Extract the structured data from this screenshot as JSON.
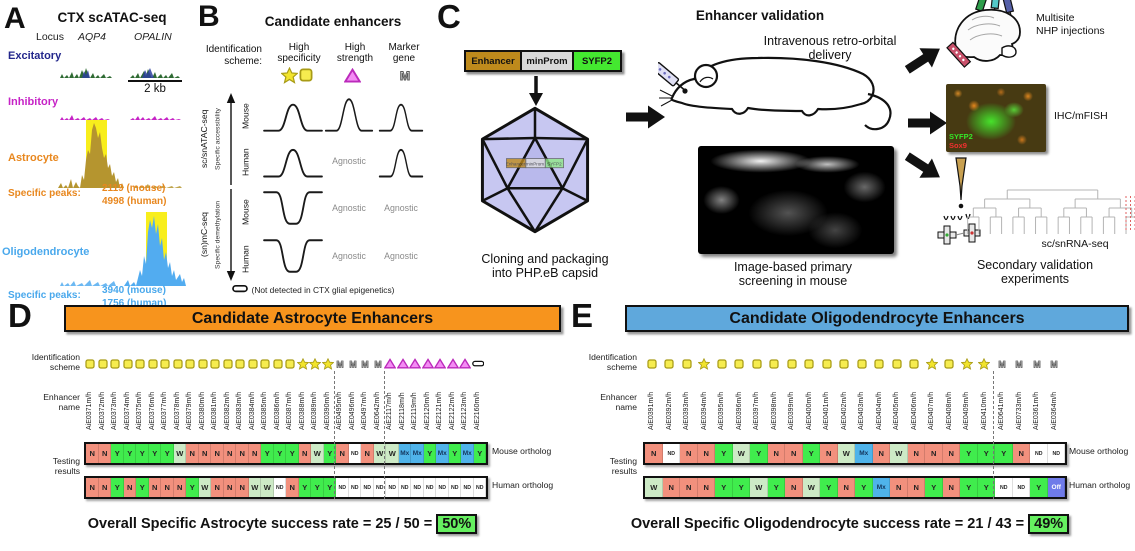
{
  "colors": {
    "astro_header": "#F7941D",
    "oligo_header": "#5FA8DC",
    "result_N": "#F2907D",
    "result_Y": "#40EC4D",
    "result_W": "#CDEAC6",
    "result_ND": "#FFFFFF",
    "result_Mx": "#4FB3EA",
    "result_Off": "#6F7BE9",
    "success_highlight": "#66F060",
    "excitatory": "#23278C",
    "inhibitory": "#C623C6",
    "astrocyte": "#E8871E",
    "oligodendrocyte": "#49A8EC"
  },
  "panel_a": {
    "label": "A",
    "title": "CTX scATAC-seq",
    "locus": "Locus",
    "gene1": "AQP4",
    "gene2": "OPALIN",
    "scale": "2 kb",
    "excitatory": "Excitatory",
    "inhibitory": "Inhibitory",
    "astrocyte": "Astrocyte",
    "oligodendrocyte": "Oligodendrocyte",
    "astro_peaks_label": "Specific peaks:",
    "astro_peaks": [
      "2119 (mouse)",
      "4998 (human)"
    ],
    "oligo_peaks_label": "Specific peaks:",
    "oligo_peaks": [
      "3940 (mouse)",
      "1756 (human)"
    ]
  },
  "panel_b": {
    "label": "B",
    "title": "Candidate enhancers",
    "scheme_label": [
      "Identification",
      "scheme:"
    ],
    "columns": [
      [
        "High",
        "specificity"
      ],
      [
        "High",
        "strength"
      ],
      [
        "Marker",
        "gene"
      ]
    ],
    "groups": [
      {
        "assay": "sc/snATAC-seq",
        "signal": "Specific accessibility"
      },
      {
        "assay": "(sn)mC-seq",
        "signal": "Specific demethylation"
      }
    ],
    "species": [
      "Mouse",
      "Human"
    ],
    "agnostic": "Agnostic",
    "cells": [
      [
        "peak",
        "tallpeak",
        "peak"
      ],
      [
        "peak",
        "agnostic",
        "peak"
      ],
      [
        "dip",
        "agnostic",
        "agnostic"
      ],
      [
        "dip",
        "agnostic",
        "agnostic"
      ]
    ],
    "footnote": "(Not detected in CTX glial epigenetics)"
  },
  "panel_c": {
    "label": "C",
    "title": "Enhancer validation",
    "construct": [
      "Enhancer",
      "minProm",
      "SYFP2"
    ],
    "cloning_caption": [
      "Cloning and packaging",
      "into PHP.eB capsid"
    ],
    "delivery_caption": [
      "Intravenous retro-orbital",
      "delivery"
    ],
    "screening_caption": [
      "Image-based primary",
      "screening in mouse"
    ],
    "nhp_label": [
      "Multisite",
      "NHP injections"
    ],
    "ihc_label": "IHC/mFISH",
    "ihc_markers": [
      "SYFP2",
      "Sox9"
    ],
    "rna_label": "sc/snRNA-seq",
    "secondary_caption": [
      "Secondary validation",
      "experiments"
    ]
  },
  "panel_d": {
    "label": "D",
    "header": "Candidate Astrocyte Enhancers",
    "scheme_label": [
      "Identification",
      "scheme"
    ],
    "name_label": [
      "Enhancer",
      "name"
    ],
    "testing_label": [
      "Testing",
      "results"
    ],
    "mouse_row_label": "Mouse ortholog",
    "human_row_label": "Human ortholog",
    "enhancers": [
      {
        "name": "AiE0371m/h",
        "icon": "square"
      },
      {
        "name": "AiE0372m/h",
        "icon": "square"
      },
      {
        "name": "AiE0373m/h",
        "icon": "square"
      },
      {
        "name": "AiE0374m/h",
        "icon": "square"
      },
      {
        "name": "AiE0375m/h",
        "icon": "square"
      },
      {
        "name": "AiE0376m/h",
        "icon": "square"
      },
      {
        "name": "AiE0377m/h",
        "icon": "square"
      },
      {
        "name": "AiE0378m/h",
        "icon": "square"
      },
      {
        "name": "AiE0379m/h",
        "icon": "square"
      },
      {
        "name": "AiE0380m/h",
        "icon": "square"
      },
      {
        "name": "AiE0381m/h",
        "icon": "square"
      },
      {
        "name": "AiE0382m/h",
        "icon": "square"
      },
      {
        "name": "AiE0383m/h",
        "icon": "square"
      },
      {
        "name": "AiE0384m/h",
        "icon": "square"
      },
      {
        "name": "AiE0385m/h",
        "icon": "square"
      },
      {
        "name": "AiE0386m/h",
        "icon": "square"
      },
      {
        "name": "AiE0387m/h",
        "icon": "square"
      },
      {
        "name": "AiE0388m/h",
        "icon": "star"
      },
      {
        "name": "AiE0389m/h",
        "icon": "star"
      },
      {
        "name": "AiE0390m/h",
        "icon": "star"
      },
      {
        "name": "AiE0495m/h",
        "icon": "marker"
      },
      {
        "name": "AiE0496m/h",
        "icon": "marker"
      },
      {
        "name": "AiE0497m/h",
        "icon": "marker"
      },
      {
        "name": "AiE0642m/h",
        "icon": "marker"
      },
      {
        "name": "AiE2117m/h",
        "icon": "triangle"
      },
      {
        "name": "AiE2118m/h",
        "icon": "triangle"
      },
      {
        "name": "AiE2119m/h",
        "icon": "triangle"
      },
      {
        "name": "AiE2120m/h",
        "icon": "triangle"
      },
      {
        "name": "AiE2121m/h",
        "icon": "triangle"
      },
      {
        "name": "AiE2122m/h",
        "icon": "triangle"
      },
      {
        "name": "AiE2123m/h",
        "icon": "triangle"
      },
      {
        "name": "AiE2160m/h",
        "icon": "notdet"
      }
    ],
    "mouse_results": [
      "N",
      "N",
      "Y",
      "Y",
      "Y",
      "Y",
      "Y",
      "W",
      "N",
      "N",
      "N",
      "N",
      "N",
      "N",
      "Y",
      "Y",
      "Y",
      "N",
      "W",
      "Y",
      "N",
      "ND",
      "N",
      "W",
      "W",
      "Mx",
      "Mx",
      "Y",
      "Mx",
      "Y",
      "Mx",
      "Y"
    ],
    "human_results": [
      "N",
      "N",
      "Y",
      "N",
      "Y",
      "N",
      "N",
      "N",
      "Y",
      "W",
      "N",
      "N",
      "N",
      "W",
      "W",
      "ND",
      "N",
      "Y",
      "Y",
      "Y",
      "ND",
      "ND",
      "ND",
      "ND",
      "ND",
      "ND",
      "ND",
      "ND",
      "ND",
      "ND",
      "ND",
      "ND"
    ],
    "group_breaks": [
      20,
      24
    ],
    "footer": "Overall Specific Astrocyte success rate = 25 / 50 =",
    "footer_highlight": "50%"
  },
  "panel_e": {
    "label": "E",
    "header": "Candidate Oligodendrocyte Enhancers",
    "scheme_label": [
      "Identification",
      "scheme"
    ],
    "name_label": [
      "Enhancer",
      "name"
    ],
    "testing_label": [
      "Testing",
      "results"
    ],
    "mouse_row_label": "Mouse ortholog",
    "human_row_label": "Human ortholog",
    "enhancers": [
      {
        "name": "AiE0391m/h",
        "icon": "square"
      },
      {
        "name": "AiE0392m/h",
        "icon": "square"
      },
      {
        "name": "AiE0393m/h",
        "icon": "square"
      },
      {
        "name": "AiE0394m/h",
        "icon": "star"
      },
      {
        "name": "AiE0395m/h",
        "icon": "square"
      },
      {
        "name": "AiE0396m/h",
        "icon": "square"
      },
      {
        "name": "AiE0397m/h",
        "icon": "square"
      },
      {
        "name": "AiE0398m/h",
        "icon": "square"
      },
      {
        "name": "AiE0399m/h",
        "icon": "square"
      },
      {
        "name": "AiE0400m/h",
        "icon": "square"
      },
      {
        "name": "AiE0401m/h",
        "icon": "square"
      },
      {
        "name": "AiE0402m/h",
        "icon": "square"
      },
      {
        "name": "AiE0403m/h",
        "icon": "square"
      },
      {
        "name": "AiE0404m/h",
        "icon": "square"
      },
      {
        "name": "AiE0405m/h",
        "icon": "square"
      },
      {
        "name": "AiE0406m/h",
        "icon": "square"
      },
      {
        "name": "AiE0407m/h",
        "icon": "star"
      },
      {
        "name": "AiE0408m/h",
        "icon": "square"
      },
      {
        "name": "AiE0409m/h",
        "icon": "star"
      },
      {
        "name": "AiE0410m/h",
        "icon": "star"
      },
      {
        "name": "AiE0641m/h",
        "icon": "marker"
      },
      {
        "name": "AiE0733m/h",
        "icon": "marker"
      },
      {
        "name": "AiE0361m/h",
        "icon": "marker"
      },
      {
        "name": "AiE0364m/h",
        "icon": "marker"
      }
    ],
    "mouse_results": [
      "N",
      "ND",
      "N",
      "N",
      "Y",
      "W",
      "Y",
      "N",
      "N",
      "Y",
      "N",
      "W",
      "Mx",
      "N",
      "W",
      "N",
      "N",
      "N",
      "Y",
      "Y",
      "Y",
      "N",
      "ND",
      "ND"
    ],
    "human_results": [
      "W",
      "N",
      "N",
      "N",
      "Y",
      "Y",
      "W",
      "Y",
      "N",
      "W",
      "Y",
      "N",
      "Y",
      "Mx",
      "N",
      "N",
      "Y",
      "N",
      "Y",
      "Y",
      "ND",
      "ND",
      "Y",
      "Off"
    ],
    "group_breaks": [
      20
    ],
    "footer": "Overall Specific Oligodendrocyte success rate = 21 / 43 =",
    "footer_highlight": "49%"
  }
}
